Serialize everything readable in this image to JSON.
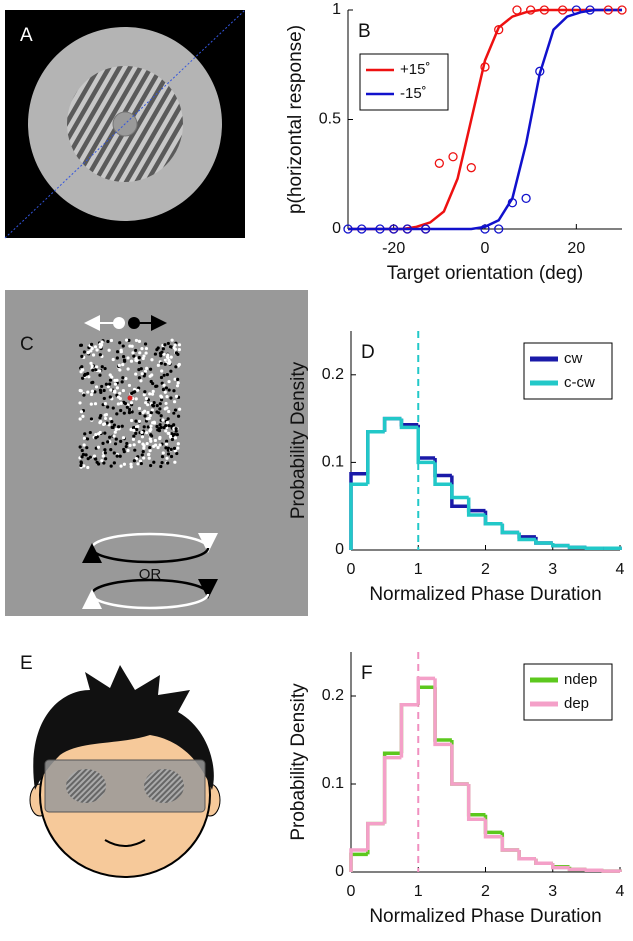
{
  "chart_data": [
    {
      "type": "line",
      "panel_label": "B",
      "x_label": "Target orientation (deg)",
      "y_label": "p(horizontal response)",
      "xlim": [
        -30,
        30
      ],
      "ylim": [
        0,
        1
      ],
      "xticks": [
        -20,
        0,
        20
      ],
      "yticks": [
        0,
        0.5,
        1
      ],
      "legend": "upper left",
      "series": [
        {
          "name": "+15˚",
          "color": "#ee1111",
          "style": "line",
          "x": [
            -30,
            -27,
            -24,
            -21,
            -18,
            -15,
            -12,
            -9,
            -6,
            -3,
            0,
            3,
            6,
            9,
            12,
            15,
            18,
            21,
            24,
            27,
            30
          ],
          "values": [
            0,
            0,
            0,
            0,
            0,
            0.01,
            0.03,
            0.08,
            0.23,
            0.5,
            0.77,
            0.92,
            0.97,
            0.99,
            1,
            1,
            1,
            1,
            1,
            1,
            1
          ]
        },
        {
          "name": "-15˚",
          "color": "#1111cc",
          "style": "line",
          "x": [
            -30,
            -27,
            -24,
            -21,
            -18,
            -15,
            -12,
            -9,
            -6,
            -3,
            0,
            3,
            6,
            9,
            12,
            15,
            18,
            21,
            24,
            27,
            30
          ],
          "values": [
            0,
            0,
            0,
            0,
            0,
            0,
            0,
            0,
            0,
            0,
            0.01,
            0.04,
            0.14,
            0.39,
            0.71,
            0.91,
            0.97,
            0.99,
            1,
            1,
            1
          ]
        },
        {
          "color": "#ee1111",
          "style": "markers",
          "x": [
            -20,
            -17,
            -13,
            -10,
            -7,
            -3,
            0,
            3,
            7,
            10,
            13,
            17,
            27,
            30
          ],
          "values": [
            0,
            0,
            0,
            0.3,
            0.33,
            0.28,
            0.74,
            0.91,
            1,
            1,
            1,
            1,
            1,
            1
          ]
        },
        {
          "color": "#1111cc",
          "style": "markers",
          "x": [
            -30,
            -27,
            -23,
            -20,
            -17,
            -13,
            0,
            3,
            6,
            9,
            12,
            20,
            23
          ],
          "values": [
            0,
            0,
            0,
            0,
            0,
            0,
            0,
            0,
            0.12,
            0.14,
            0.72,
            1,
            1
          ]
        }
      ]
    },
    {
      "type": "histogram",
      "panel_label": "D",
      "x_label": "Normalized Phase Duration",
      "y_label": "Probability Density",
      "xlim": [
        0,
        4
      ],
      "ylim": [
        0,
        0.25
      ],
      "xticks": [
        0,
        1,
        2,
        3,
        4
      ],
      "yticks": [
        0,
        0.1,
        0.2
      ],
      "legend": "upper right",
      "reference_line": 1,
      "reference_color": "#22c8c8",
      "bins": [
        0,
        0.25,
        0.5,
        0.75,
        1,
        1.25,
        1.5,
        1.75,
        2,
        2.25,
        2.5,
        2.75,
        3,
        3.25,
        3.5,
        3.75,
        4
      ],
      "series": [
        {
          "name": "cw",
          "color": "#1a1aa8",
          "values": [
            0.087,
            0.135,
            0.15,
            0.143,
            0.105,
            0.085,
            0.05,
            0.045,
            0.03,
            0.02,
            0.015,
            0.008,
            0.005,
            0.003,
            0.002,
            0.002
          ]
        },
        {
          "name": "c-cw",
          "color": "#22c8c8",
          "values": [
            0.075,
            0.135,
            0.15,
            0.14,
            0.1,
            0.075,
            0.06,
            0.04,
            0.03,
            0.02,
            0.012,
            0.008,
            0.005,
            0.003,
            0.002,
            0.002
          ]
        }
      ]
    },
    {
      "type": "histogram",
      "panel_label": "F",
      "x_label": "Normalized Phase Duration",
      "y_label": "Probability Density",
      "xlim": [
        0,
        4
      ],
      "ylim": [
        0,
        0.25
      ],
      "xticks": [
        0,
        1,
        2,
        3,
        4
      ],
      "yticks": [
        0,
        0.1,
        0.2
      ],
      "legend": "upper right",
      "reference_line": 1,
      "reference_color": "#f090c0",
      "bins": [
        0,
        0.25,
        0.5,
        0.75,
        1,
        1.25,
        1.5,
        1.75,
        2,
        2.25,
        2.5,
        2.75,
        3,
        3.25,
        3.5,
        3.75,
        4
      ],
      "series": [
        {
          "name": "ndep",
          "color": "#5cc81e",
          "values": [
            0.02,
            0.055,
            0.135,
            0.19,
            0.21,
            0.15,
            0.1,
            0.065,
            0.045,
            0.025,
            0.015,
            0.01,
            0.006,
            0.003,
            0.002,
            0.001
          ]
        },
        {
          "name": "dep",
          "color": "#f4a0c8",
          "values": [
            0.025,
            0.055,
            0.13,
            0.19,
            0.22,
            0.145,
            0.1,
            0.06,
            0.04,
            0.025,
            0.015,
            0.01,
            0.005,
            0.003,
            0.002,
            0.001
          ]
        }
      ]
    }
  ],
  "illustrations": {
    "a": {
      "label": "A"
    },
    "c": {
      "label": "C",
      "text": "OR"
    },
    "e": {
      "label": "E"
    }
  }
}
